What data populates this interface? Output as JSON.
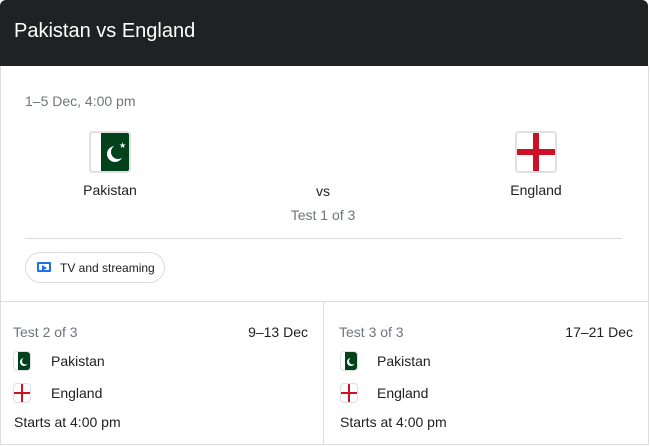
{
  "header": {
    "title": "Pakistan vs England"
  },
  "main_match": {
    "datetime": "1–5 Dec, 4:00 pm",
    "home": {
      "name": "Pakistan",
      "flag": "pakistan-flag"
    },
    "away": {
      "name": "England",
      "flag": "england-flag"
    },
    "vs": "vs",
    "series_label": "Test 1 of 3",
    "tv_button": "TV and streaming"
  },
  "upcoming": [
    {
      "label": "Test 2 of 3",
      "dates": "9–13 Dec",
      "teams": [
        "Pakistan",
        "England"
      ],
      "start": "Starts at 4:00 pm"
    },
    {
      "label": "Test 3 of 3",
      "dates": "17–21 Dec",
      "teams": [
        "Pakistan",
        "England"
      ],
      "start": "Starts at 4:00 pm"
    }
  ],
  "colors": {
    "header_bg": "#202124",
    "accent": "#1a73e8",
    "pakistan_green": "#01411c",
    "england_red": "#ce1124"
  }
}
